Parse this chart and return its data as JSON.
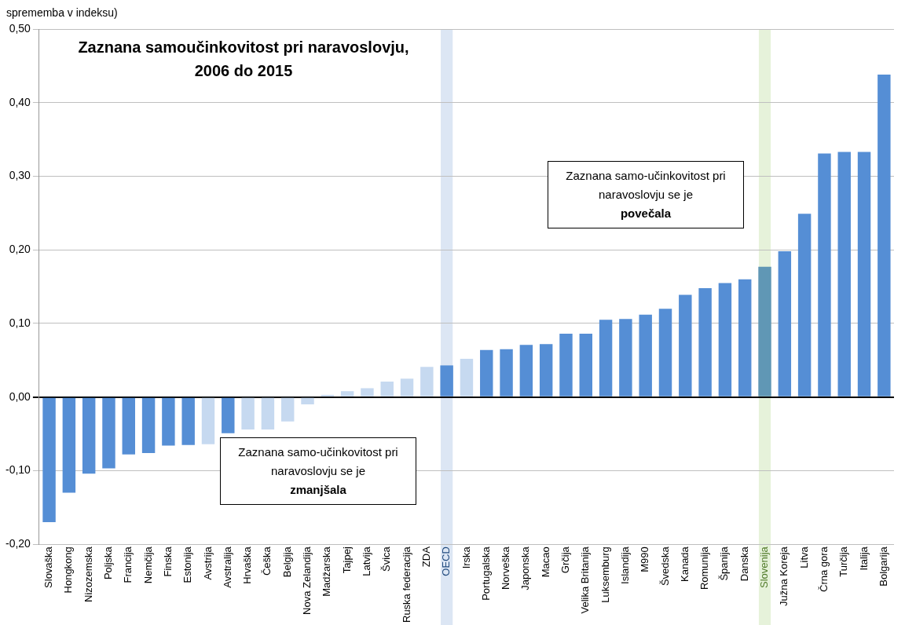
{
  "chart_data": {
    "type": "bar",
    "title": "Zaznana samoučinkovitost pri naravoslovju, 2006 do 2015",
    "ylabel": "sprememba v indeksu)",
    "categories": [
      "Slovaška",
      "Hongkong",
      "Nizozemska",
      "Poljska",
      "Francija",
      "Nemčija",
      "Finska",
      "Estonija",
      "Avstrija",
      "Avstralija",
      "Hrvaška",
      "Češka",
      "Belgija",
      "Nova Zelandija",
      "Madžarska",
      "Tajpej",
      "Latvija",
      "Švica",
      "Ruska federacija",
      "ZDA",
      "OECD",
      "Irska",
      "Portugalska",
      "Norveška",
      "Japonska",
      "Macao",
      "Grčija",
      "Velika Britanija",
      "Luksemburg",
      "Islandija",
      "M990",
      "Švedska",
      "Kanada",
      "Romunija",
      "Španija",
      "Danska",
      "Slovenija",
      "Južna Koreja",
      "Litva",
      "Črna gora",
      "Turčija",
      "Italija",
      "Bolgarija"
    ],
    "values": [
      -0.17,
      -0.13,
      -0.104,
      -0.097,
      -0.078,
      -0.076,
      -0.066,
      -0.065,
      -0.064,
      -0.049,
      -0.044,
      -0.044,
      -0.033,
      -0.01,
      0.003,
      0.008,
      0.012,
      0.021,
      0.025,
      0.041,
      0.043,
      0.052,
      0.064,
      0.065,
      0.071,
      0.072,
      0.086,
      0.086,
      0.105,
      0.106,
      0.112,
      0.12,
      0.139,
      0.148,
      0.155,
      0.16,
      0.177,
      0.198,
      0.249,
      0.331,
      0.333,
      0.333,
      0.438
    ],
    "colors": [
      "#558ed5",
      "#558ed5",
      "#558ed5",
      "#558ed5",
      "#558ed5",
      "#558ed5",
      "#558ed5",
      "#558ed5",
      "#c6d9f0",
      "#558ed5",
      "#c6d9f0",
      "#c6d9f0",
      "#c6d9f0",
      "#c6d9f0",
      "#c6d9f0",
      "#c6d9f0",
      "#c6d9f0",
      "#c6d9f0",
      "#c6d9f0",
      "#c6d9f0",
      "#558ed5",
      "#c6d9f0",
      "#558ed5",
      "#558ed5",
      "#558ed5",
      "#558ed5",
      "#558ed5",
      "#558ed5",
      "#558ed5",
      "#558ed5",
      "#558ed5",
      "#558ed5",
      "#558ed5",
      "#558ed5",
      "#558ed5",
      "#558ed5",
      "#6097b5",
      "#558ed5",
      "#558ed5",
      "#558ed5",
      "#558ed5",
      "#558ed5",
      "#558ed5"
    ],
    "ylim": [
      -0.2,
      0.5
    ],
    "yticks": [
      {
        "value": -0.2,
        "label": "-0,20"
      },
      {
        "value": -0.1,
        "label": "-0,10"
      },
      {
        "value": 0,
        "label": "0,00"
      },
      {
        "value": 0.1,
        "label": "0,10"
      },
      {
        "value": 0.2,
        "label": "0,20"
      },
      {
        "value": 0.3,
        "label": "0,30"
      },
      {
        "value": 0.4,
        "label": "0,40"
      },
      {
        "value": 0.5,
        "label": "0,50"
      }
    ],
    "grid": "y",
    "bands": [
      {
        "axis": "x",
        "from": "OECD",
        "to": "OECD",
        "label": null,
        "color": "#dce6f4"
      },
      {
        "axis": "x",
        "from": "Slovenija",
        "to": "Slovenija",
        "label": null,
        "color": "#e6f2da"
      }
    ],
    "annotations": [
      "Zaznana samo-učinkovitost pri naravoslovju se je povečala",
      "Zaznana samo-učinkovitost pri naravoslovju se je zmanjšala"
    ]
  }
}
